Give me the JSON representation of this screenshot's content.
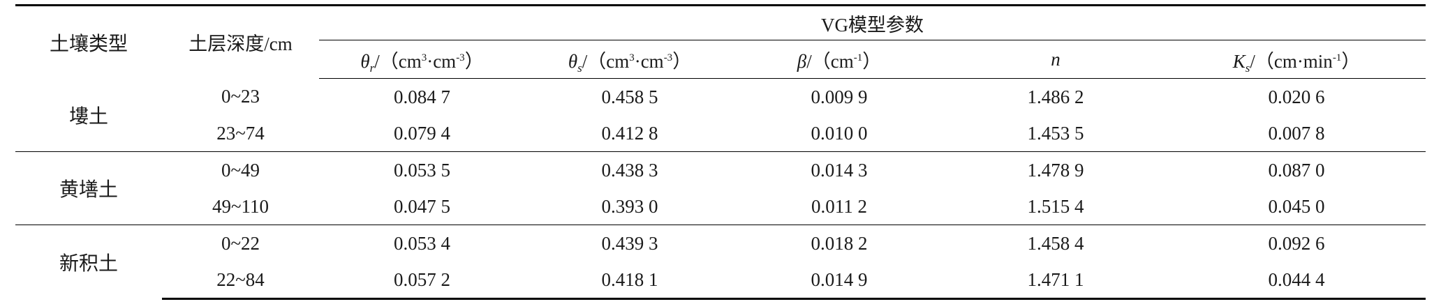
{
  "table": {
    "headers": {
      "soil_type": "土壤类型",
      "depth": "土层深度/cm",
      "group": "VG模型参数",
      "theta_r": {
        "symbol": "θ",
        "sub": "r",
        "prefix": "/（cm",
        "sup1": "3",
        "mid": "·cm",
        "sup2": "-3",
        "suffix": "）"
      },
      "theta_s": {
        "symbol": "θ",
        "sub": "s",
        "prefix": "/（cm",
        "sup1": "3",
        "mid": "·cm",
        "sup2": "-3",
        "suffix": "）"
      },
      "beta": {
        "symbol": "β",
        "prefix": "/（cm",
        "sup1": "-1",
        "suffix": "）"
      },
      "n": "n",
      "ks": {
        "symbol": "K",
        "sub": "s",
        "prefix": "/（cm·min",
        "sup1": "-1",
        "suffix": "）"
      }
    },
    "soils": [
      {
        "name": "塿土",
        "rows": [
          {
            "depth": "0~23",
            "theta_r": "0.084 7",
            "theta_s": "0.458 5",
            "beta": "0.009 9",
            "n": "1.486 2",
            "ks": "0.020 6"
          },
          {
            "depth": "23~74",
            "theta_r": "0.079 4",
            "theta_s": "0.412 8",
            "beta": "0.010 0",
            "n": "1.453 5",
            "ks": "0.007 8"
          }
        ]
      },
      {
        "name": "黄墡土",
        "rows": [
          {
            "depth": "0~49",
            "theta_r": "0.053 5",
            "theta_s": "0.438 3",
            "beta": "0.014 3",
            "n": "1.478 9",
            "ks": "0.087 0"
          },
          {
            "depth": "49~110",
            "theta_r": "0.047 5",
            "theta_s": "0.393 0",
            "beta": "0.011 2",
            "n": "1.515 4",
            "ks": "0.045 0"
          }
        ]
      },
      {
        "name": "新积土",
        "rows": [
          {
            "depth": "0~22",
            "theta_r": "0.053 4",
            "theta_s": "0.439 3",
            "beta": "0.018 2",
            "n": "1.458 4",
            "ks": "0.092 6"
          },
          {
            "depth": "22~84",
            "theta_r": "0.057 2",
            "theta_s": "0.418 1",
            "beta": "0.014 9",
            "n": "1.471 1",
            "ks": "0.044 4"
          }
        ]
      }
    ]
  }
}
